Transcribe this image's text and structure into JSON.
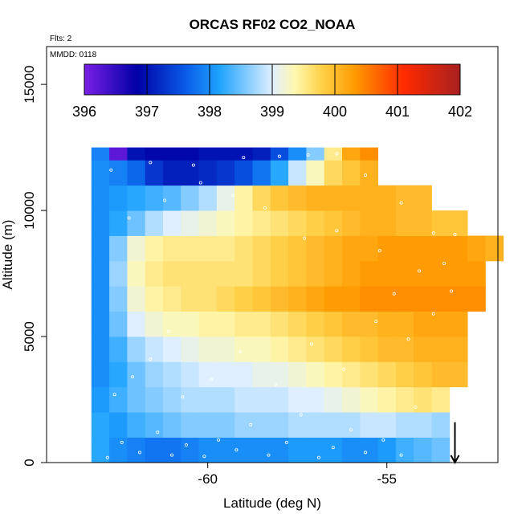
{
  "chart_data": {
    "type": "heatmap",
    "title": "ORCAS RF02 CO2_NOAA",
    "xlabel": "Latitude (deg N)",
    "ylabel": "Altitude (m)",
    "xlim": [
      -64.5,
      -51.9
    ],
    "ylim": [
      0,
      16500
    ],
    "x_ticks": [
      -60,
      -55
    ],
    "y_ticks": [
      0,
      5000,
      10000,
      15000
    ],
    "annotations": {
      "flights": "Flts: 2",
      "date": "MMDD: 0118"
    },
    "colorbar": {
      "min": 396,
      "max": 402,
      "ticks": [
        396,
        397,
        398,
        399,
        400,
        401,
        402
      ],
      "colors": [
        "#7a1fe6",
        "#0000a6",
        "#0a5ce8",
        "#1fa3ff",
        "#dfefff",
        "#fff8b0",
        "#ffd24a",
        "#ff9a00",
        "#ff2a00",
        "#a82020"
      ],
      "color_positions": [
        0,
        0.14,
        0.27,
        0.36,
        0.5,
        0.56,
        0.63,
        0.72,
        0.85,
        1
      ]
    },
    "marker": {
      "type": "down-arrow",
      "latitude": -53.1,
      "altitude": 700
    },
    "latitudes": [
      -63.0,
      -62.5,
      -62.0,
      -61.5,
      -61.0,
      -60.5,
      -60.0,
      -59.5,
      -59.0,
      -58.5,
      -58.0,
      -57.5,
      -57.0,
      -56.5,
      -56.0,
      -55.5,
      -55.0,
      -54.5,
      -54.0,
      -53.5,
      -53.0,
      -52.5,
      -52.0
    ],
    "altitude_bands": [
      {
        "alt_min": 0,
        "alt_max": 1000,
        "values": [
          398.2,
          398.0,
          397.9,
          397.8,
          397.8,
          397.9,
          398.0,
          398.0,
          398.0,
          398.0,
          398.0,
          398.1,
          398.1,
          398.1,
          398.0,
          398.0,
          398.1,
          398.3,
          398.4,
          398.5,
          null,
          null,
          null
        ]
      },
      {
        "alt_min": 1000,
        "alt_max": 2000,
        "values": [
          398.2,
          398.1,
          398.3,
          398.4,
          398.5,
          398.6,
          398.6,
          398.6,
          398.7,
          398.7,
          398.7,
          398.8,
          398.8,
          398.8,
          398.8,
          398.9,
          398.9,
          398.8,
          398.8,
          398.7,
          null,
          null,
          null
        ]
      },
      {
        "alt_min": 2000,
        "alt_max": 3000,
        "values": [
          398.1,
          398.3,
          398.5,
          398.6,
          398.7,
          398.8,
          398.8,
          398.8,
          398.9,
          398.9,
          398.9,
          399.0,
          399.0,
          399.1,
          399.2,
          399.3,
          399.4,
          399.5,
          399.6,
          399.5,
          null,
          null,
          null
        ]
      },
      {
        "alt_min": 3000,
        "alt_max": 4000,
        "values": [
          398.0,
          398.2,
          398.5,
          398.7,
          398.8,
          398.9,
          399.0,
          399.0,
          399.0,
          399.1,
          399.1,
          399.2,
          399.3,
          399.4,
          399.5,
          399.6,
          399.7,
          399.8,
          399.9,
          400.0,
          400.0,
          null,
          null
        ]
      },
      {
        "alt_min": 4000,
        "alt_max": 5000,
        "values": [
          398.0,
          398.3,
          398.7,
          398.9,
          399.0,
          399.1,
          399.2,
          399.2,
          399.3,
          399.3,
          399.4,
          399.5,
          399.6,
          399.7,
          399.8,
          399.9,
          400.0,
          400.0,
          400.1,
          400.1,
          400.1,
          null,
          null
        ]
      },
      {
        "alt_min": 5000,
        "alt_max": 6000,
        "values": [
          398.0,
          398.5,
          399.0,
          399.2,
          399.3,
          399.3,
          399.4,
          399.4,
          399.5,
          399.5,
          399.6,
          399.7,
          399.8,
          399.9,
          400.0,
          400.0,
          400.1,
          400.1,
          400.2,
          400.2,
          400.2,
          null,
          null
        ]
      },
      {
        "alt_min": 6000,
        "alt_max": 7000,
        "values": [
          398.0,
          398.6,
          399.2,
          399.4,
          399.5,
          399.6,
          399.6,
          399.7,
          399.8,
          399.9,
          400.0,
          400.1,
          400.2,
          400.3,
          400.3,
          400.4,
          400.4,
          400.4,
          400.4,
          400.4,
          400.4,
          400.4,
          null
        ]
      },
      {
        "alt_min": 7000,
        "alt_max": 8000,
        "values": [
          398.0,
          398.7,
          399.3,
          399.5,
          399.6,
          399.6,
          399.6,
          399.6,
          399.6,
          399.7,
          399.8,
          399.9,
          400.0,
          400.1,
          400.2,
          400.3,
          400.3,
          400.3,
          400.3,
          400.3,
          400.3,
          400.3,
          null
        ]
      },
      {
        "alt_min": 8000,
        "alt_max": 9000,
        "values": [
          398.0,
          398.6,
          399.2,
          399.4,
          399.5,
          399.5,
          399.5,
          399.5,
          399.6,
          399.7,
          399.8,
          399.9,
          400.0,
          400.1,
          400.2,
          400.2,
          400.3,
          400.3,
          400.3,
          400.3,
          400.3,
          400.2,
          400.1
        ]
      },
      {
        "alt_min": 9000,
        "alt_max": 10000,
        "values": [
          398.0,
          398.2,
          398.5,
          398.8,
          399.0,
          399.1,
          399.2,
          399.3,
          399.4,
          399.5,
          399.6,
          399.7,
          399.8,
          399.9,
          400.0,
          400.1,
          400.1,
          400.0,
          400.0,
          399.9,
          399.9,
          null,
          null
        ]
      },
      {
        "alt_min": 10000,
        "alt_max": 11000,
        "values": [
          398.0,
          398.1,
          398.2,
          398.3,
          398.4,
          398.6,
          398.8,
          399.1,
          399.4,
          399.7,
          399.9,
          400.0,
          400.1,
          400.1,
          400.1,
          400.1,
          400.1,
          400.0,
          400.0,
          null,
          null,
          null,
          null
        ]
      },
      {
        "alt_min": 11000,
        "alt_max": 12000,
        "values": [
          398.0,
          397.9,
          397.7,
          397.3,
          397.1,
          397.1,
          397.2,
          397.3,
          397.5,
          397.8,
          398.2,
          398.9,
          399.3,
          399.7,
          399.9,
          400.1,
          null,
          null,
          null,
          null,
          null,
          null,
          null
        ]
      },
      {
        "alt_min": 12000,
        "alt_max": 12500,
        "values": [
          397.9,
          396.2,
          397.0,
          396.9,
          396.9,
          396.9,
          397.0,
          397.0,
          397.0,
          397.1,
          397.5,
          398.0,
          398.6,
          399.5,
          400.2,
          400.4,
          null,
          null,
          null,
          null,
          null,
          null,
          null
        ]
      }
    ],
    "sample_points": [
      [
        -62.8,
        200
      ],
      [
        -62.4,
        800
      ],
      [
        -61.9,
        400
      ],
      [
        -61.4,
        1200
      ],
      [
        -61.0,
        300
      ],
      [
        -60.6,
        700
      ],
      [
        -60.1,
        250
      ],
      [
        -59.7,
        900
      ],
      [
        -59.2,
        500
      ],
      [
        -58.8,
        1500
      ],
      [
        -58.3,
        300
      ],
      [
        -57.8,
        800
      ],
      [
        -57.4,
        1900
      ],
      [
        -56.9,
        200
      ],
      [
        -56.5,
        600
      ],
      [
        -56.0,
        1300
      ],
      [
        -55.6,
        400
      ],
      [
        -55.1,
        900
      ],
      [
        -54.6,
        300
      ],
      [
        -54.2,
        2200
      ],
      [
        -62.6,
        2700
      ],
      [
        -62.1,
        3400
      ],
      [
        -61.6,
        4100
      ],
      [
        -61.1,
        5200
      ],
      [
        -60.7,
        2600
      ],
      [
        -59.9,
        3300
      ],
      [
        -59.1,
        4400
      ],
      [
        -58.1,
        3100
      ],
      [
        -57.1,
        4700
      ],
      [
        -56.2,
        3700
      ],
      [
        -55.3,
        5600
      ],
      [
        -54.4,
        4900
      ],
      [
        -53.7,
        5900
      ],
      [
        -53.2,
        6800
      ],
      [
        -54.1,
        7600
      ],
      [
        -55.2,
        8400
      ],
      [
        -56.4,
        9200
      ],
      [
        -57.3,
        8900
      ],
      [
        -58.4,
        10100
      ],
      [
        -59.3,
        10600
      ],
      [
        -60.2,
        11100
      ],
      [
        -61.2,
        10400
      ],
      [
        -62.2,
        9700
      ],
      [
        -62.7,
        11600
      ],
      [
        -61.6,
        11900
      ],
      [
        -60.4,
        11800
      ],
      [
        -59.0,
        12100
      ],
      [
        -58.0,
        12150
      ],
      [
        -57.2,
        12200
      ],
      [
        -56.4,
        12250
      ],
      [
        -55.6,
        11400
      ],
      [
        -54.6,
        10300
      ],
      [
        -53.7,
        9100
      ],
      [
        -53.1,
        9050
      ],
      [
        -52.7,
        9100
      ],
      [
        -52.3,
        9100
      ],
      [
        -53.4,
        7900
      ],
      [
        -54.8,
        6700
      ]
    ]
  }
}
